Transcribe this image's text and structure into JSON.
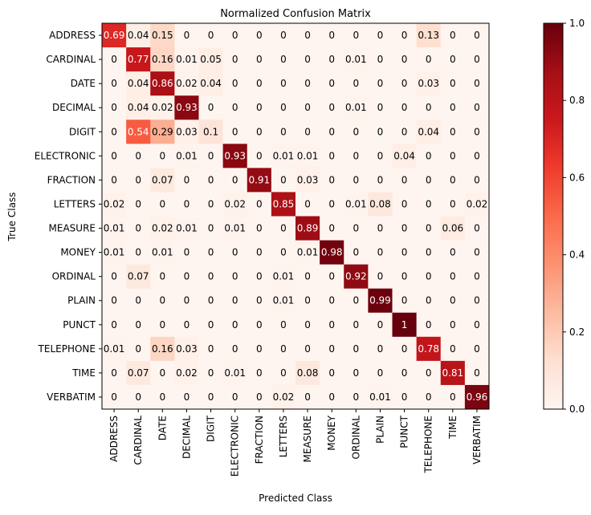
{
  "chart_data": {
    "type": "heatmap",
    "title": "Normalized Confusion Matrix",
    "xlabel": "Predicted Class",
    "ylabel": "True Class",
    "classes": [
      "ADDRESS",
      "CARDINAL",
      "DATE",
      "DECIMAL",
      "DIGIT",
      "ELECTRONIC",
      "FRACTION",
      "LETTERS",
      "MEASURE",
      "MONEY",
      "ORDINAL",
      "PLAIN",
      "PUNCT",
      "TELEPHONE",
      "TIME",
      "VERBATIM"
    ],
    "matrix": [
      [
        0.69,
        0.04,
        0.15,
        0.0,
        0.0,
        0.0,
        0.0,
        0.0,
        0.0,
        0.0,
        0.0,
        0.0,
        0.0,
        0.13,
        0.0,
        0.0
      ],
      [
        0.0,
        0.77,
        0.16,
        0.01,
        0.05,
        0.0,
        0.0,
        0.0,
        0.0,
        0.0,
        0.01,
        0.0,
        0.0,
        0.0,
        0.0,
        0.0
      ],
      [
        0.0,
        0.04,
        0.86,
        0.02,
        0.04,
        0.0,
        0.0,
        0.0,
        0.0,
        0.0,
        0.0,
        0.0,
        0.0,
        0.03,
        0.0,
        0.0
      ],
      [
        0.0,
        0.04,
        0.02,
        0.93,
        0.0,
        0.0,
        0.0,
        0.0,
        0.0,
        0.0,
        0.01,
        0.0,
        0.0,
        0.0,
        0.0,
        0.0
      ],
      [
        0.0,
        0.54,
        0.29,
        0.03,
        0.1,
        0.0,
        0.0,
        0.0,
        0.0,
        0.0,
        0.0,
        0.0,
        0.0,
        0.04,
        0.0,
        0.0
      ],
      [
        0.0,
        0.0,
        0.0,
        0.01,
        0.0,
        0.93,
        0.0,
        0.01,
        0.01,
        0.0,
        0.0,
        0.0,
        0.04,
        0.0,
        0.0,
        0.0
      ],
      [
        0.0,
        0.0,
        0.07,
        0.0,
        0.0,
        0.0,
        0.91,
        0.0,
        0.03,
        0.0,
        0.0,
        0.0,
        0.0,
        0.0,
        0.0,
        0.0
      ],
      [
        0.02,
        0.0,
        0.0,
        0.0,
        0.0,
        0.02,
        0.0,
        0.85,
        0.0,
        0.0,
        0.01,
        0.08,
        0.0,
        0.0,
        0.0,
        0.02
      ],
      [
        0.01,
        0.0,
        0.02,
        0.01,
        0.0,
        0.01,
        0.0,
        0.0,
        0.89,
        0.0,
        0.0,
        0.0,
        0.0,
        0.0,
        0.06,
        0.0
      ],
      [
        0.01,
        0.0,
        0.01,
        0.0,
        0.0,
        0.0,
        0.0,
        0.0,
        0.01,
        0.98,
        0.0,
        0.0,
        0.0,
        0.0,
        0.0,
        0.0
      ],
      [
        0.0,
        0.07,
        0.0,
        0.0,
        0.0,
        0.0,
        0.0,
        0.01,
        0.0,
        0.0,
        0.92,
        0.0,
        0.0,
        0.0,
        0.0,
        0.0
      ],
      [
        0.0,
        0.0,
        0.0,
        0.0,
        0.0,
        0.0,
        0.0,
        0.01,
        0.0,
        0.0,
        0.0,
        0.99,
        0.0,
        0.0,
        0.0,
        0.0
      ],
      [
        0.0,
        0.0,
        0.0,
        0.0,
        0.0,
        0.0,
        0.0,
        0.0,
        0.0,
        0.0,
        0.0,
        0.0,
        1.0,
        0.0,
        0.0,
        0.0
      ],
      [
        0.01,
        0.0,
        0.16,
        0.03,
        0.0,
        0.0,
        0.0,
        0.0,
        0.0,
        0.0,
        0.0,
        0.0,
        0.0,
        0.78,
        0.0,
        0.0
      ],
      [
        0.0,
        0.07,
        0.0,
        0.02,
        0.0,
        0.01,
        0.0,
        0.0,
        0.08,
        0.0,
        0.0,
        0.0,
        0.0,
        0.0,
        0.81,
        0.0
      ],
      [
        0.0,
        0.0,
        0.0,
        0.0,
        0.0,
        0.0,
        0.0,
        0.02,
        0.0,
        0.0,
        0.0,
        0.01,
        0.0,
        0.0,
        0.0,
        0.96
      ]
    ],
    "colormap": "Reds",
    "colorbar": {
      "range": [
        0.0,
        1.0
      ],
      "ticks": [
        0.0,
        0.2,
        0.4,
        0.6,
        0.8,
        1.0
      ],
      "tick_labels": [
        "0.0",
        "0.2",
        "0.4",
        "0.6",
        "0.8",
        "1.0"
      ]
    },
    "text_color_threshold": 0.5,
    "text_colors": {
      "light": "#ffffff",
      "dark": "#000000"
    }
  }
}
